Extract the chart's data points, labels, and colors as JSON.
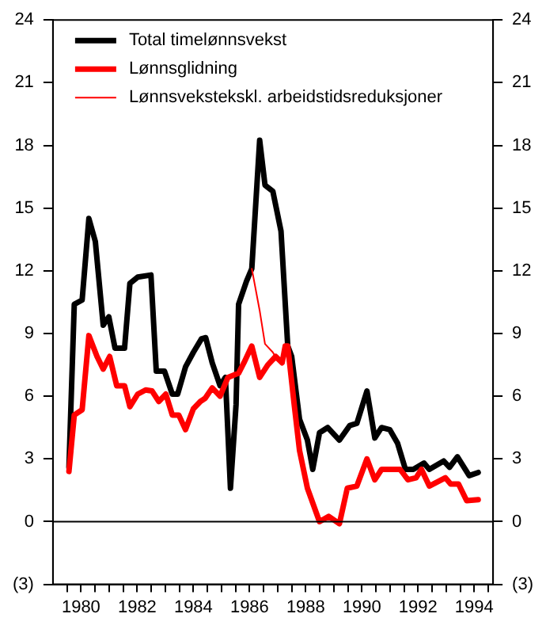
{
  "chart_data": {
    "type": "line",
    "xlim": [
      1979,
      1994.67
    ],
    "xticks": [
      {
        "value": 1979.5,
        "label": null
      },
      {
        "value": 1980,
        "label": "1980"
      },
      {
        "value": 1980.5,
        "label": null
      },
      {
        "value": 1981,
        "label": null
      },
      {
        "value": 1981.5,
        "label": null
      },
      {
        "value": 1982,
        "label": "1982"
      },
      {
        "value": 1982.5,
        "label": null
      },
      {
        "value": 1983,
        "label": null
      },
      {
        "value": 1983.5,
        "label": null
      },
      {
        "value": 1984,
        "label": "1984"
      },
      {
        "value": 1984.5,
        "label": null
      },
      {
        "value": 1985,
        "label": null
      },
      {
        "value": 1985.5,
        "label": null
      },
      {
        "value": 1986,
        "label": "1986"
      },
      {
        "value": 1986.5,
        "label": null
      },
      {
        "value": 1987,
        "label": null
      },
      {
        "value": 1987.5,
        "label": null
      },
      {
        "value": 1988,
        "label": "1988"
      },
      {
        "value": 1988.5,
        "label": null
      },
      {
        "value": 1989,
        "label": null
      },
      {
        "value": 1989.5,
        "label": null
      },
      {
        "value": 1990,
        "label": "1990"
      },
      {
        "value": 1990.5,
        "label": null
      },
      {
        "value": 1991,
        "label": null
      },
      {
        "value": 1991.5,
        "label": null
      },
      {
        "value": 1992,
        "label": "1992"
      },
      {
        "value": 1992.5,
        "label": null
      },
      {
        "value": 1993,
        "label": null
      },
      {
        "value": 1993.5,
        "label": null
      },
      {
        "value": 1994,
        "label": "1994"
      },
      {
        "value": 1994.5,
        "label": null
      }
    ],
    "ylim": [
      -3,
      24
    ],
    "yticks": [
      {
        "value": -3,
        "label": "(3)"
      },
      0,
      3,
      6,
      9,
      12,
      15,
      18,
      21,
      24
    ],
    "y2lim": [
      -3,
      24
    ],
    "y2ticks": [
      {
        "value": -3,
        "label": "(3)"
      },
      0,
      3,
      6,
      9,
      12,
      15,
      18,
      21,
      24
    ],
    "ref_lines": [
      {
        "axis": "y",
        "value": 0,
        "color": "#000000"
      }
    ],
    "grid": false,
    "legend": "top left",
    "marker": "none",
    "line_style": "solid",
    "series": [
      {
        "name": "Total timelønnsvekst",
        "color": "#000000",
        "x": [
          1979.57,
          1979.76,
          1980.04,
          1980.28,
          1980.51,
          1980.79,
          1980.99,
          1981.21,
          1981.55,
          1981.74,
          1982.02,
          1982.49,
          1982.68,
          1982.97,
          1983.25,
          1983.44,
          1983.72,
          1984.0,
          1984.29,
          1984.44,
          1984.67,
          1984.95,
          1985.14,
          1985.32,
          1985.52,
          1985.61,
          1985.89,
          1986.08,
          1986.36,
          1986.55,
          1986.83,
          1987.12,
          1987.36,
          1987.5,
          1987.78,
          1988.06,
          1988.25,
          1988.49,
          1988.78,
          1989.2,
          1989.57,
          1989.82,
          1990.18,
          1990.46,
          1990.7,
          1990.99,
          1991.27,
          1991.55,
          1991.83,
          1992.21,
          1992.4,
          1992.91,
          1993.12,
          1993.4,
          1993.82,
          1994.14
        ],
        "values": [
          2.6,
          10.4,
          10.6,
          14.5,
          13.4,
          9.4,
          9.8,
          8.3,
          8.3,
          11.4,
          11.7,
          11.8,
          7.2,
          7.2,
          6.1,
          6.1,
          7.4,
          8.1,
          8.75,
          8.8,
          7.6,
          6.5,
          6.9,
          1.6,
          5.6,
          10.4,
          11.5,
          12.1,
          18.25,
          16.1,
          15.8,
          13.9,
          8.4,
          7.9,
          4.9,
          3.9,
          2.5,
          4.25,
          4.5,
          3.9,
          4.6,
          4.7,
          6.25,
          4.0,
          4.5,
          4.4,
          3.75,
          2.5,
          2.5,
          2.8,
          2.5,
          2.9,
          2.6,
          3.1,
          2.2,
          2.35
        ]
      },
      {
        "name": "Lønnsglidning",
        "color": "#ff0000",
        "x": [
          1979.57,
          1979.76,
          1980.04,
          1980.28,
          1980.57,
          1980.79,
          1981.02,
          1981.27,
          1981.55,
          1981.74,
          1982.02,
          1982.3,
          1982.53,
          1982.77,
          1983.02,
          1983.25,
          1983.48,
          1983.72,
          1984.0,
          1984.25,
          1984.42,
          1984.67,
          1984.95,
          1985.23,
          1985.61,
          1985.8,
          1986.08,
          1986.36,
          1986.65,
          1986.93,
          1987.16,
          1987.27,
          1987.36,
          1987.59,
          1987.78,
          1988.06,
          1988.49,
          1988.82,
          1989.2,
          1989.48,
          1989.82,
          1990.18,
          1990.46,
          1990.7,
          1991.36,
          1991.64,
          1991.93,
          1992.12,
          1992.4,
          1992.97,
          1993.16,
          1993.44,
          1993.73,
          1994.14
        ],
        "values": [
          2.4,
          5.1,
          5.35,
          8.9,
          7.9,
          7.3,
          7.9,
          6.5,
          6.5,
          5.5,
          6.1,
          6.3,
          6.25,
          5.75,
          6.1,
          5.1,
          5.1,
          4.4,
          5.4,
          5.75,
          5.9,
          6.4,
          6.0,
          6.9,
          7.1,
          7.6,
          8.4,
          6.9,
          7.5,
          7.9,
          7.6,
          8.4,
          8.4,
          5.6,
          3.4,
          1.6,
          0,
          0.25,
          -0.1,
          1.6,
          1.7,
          3.0,
          2.0,
          2.5,
          2.5,
          2.0,
          2.1,
          2.5,
          1.7,
          2.1,
          1.8,
          1.8,
          1.0,
          1.05
        ]
      },
      {
        "name": "Lønnsvekstekskl. arbeidstidsreduksjoner",
        "color": "#ff0000",
        "x": [
          1986.08,
          1986.36,
          1986.55,
          1986.83,
          1987.0,
          1987.16
        ],
        "values": [
          12.1,
          10.1,
          8.5,
          8.1,
          7.7,
          7.6
        ]
      }
    ]
  }
}
